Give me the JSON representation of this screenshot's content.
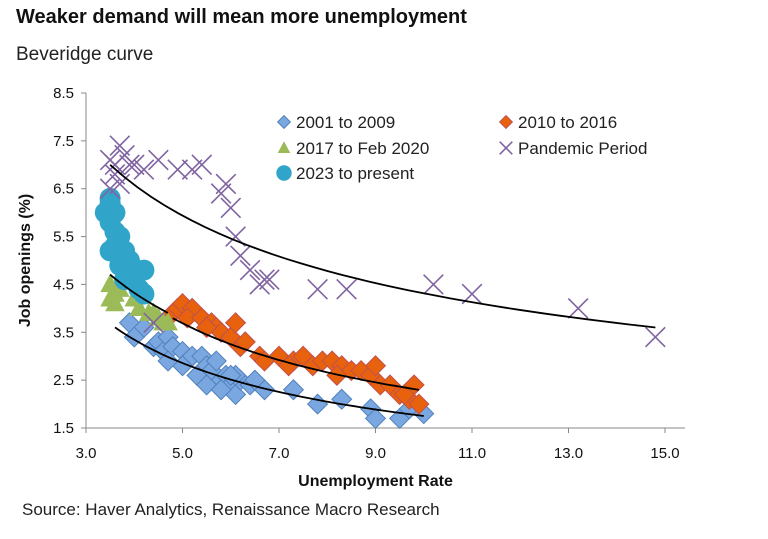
{
  "title": "Weaker demand will mean more unemployment",
  "subtitle": "Beveridge curve",
  "source": "Source: Haver Analytics, Renaissance Macro Research",
  "chart_data": {
    "type": "scatter",
    "xlabel": "Unemployment Rate",
    "ylabel": "Job openings (%)",
    "xlim": [
      3.0,
      15.0
    ],
    "ylim": [
      1.5,
      8.5
    ],
    "xticks": [
      "3.0",
      "5.0",
      "7.0",
      "9.0",
      "11.0",
      "13.0",
      "15.0"
    ],
    "yticks": [
      "1.5",
      "2.5",
      "3.5",
      "4.5",
      "5.5",
      "6.5",
      "7.5",
      "8.5"
    ],
    "grid": false,
    "legend_position": "top",
    "series": [
      {
        "name": "2001 to 2009",
        "marker": "diamond",
        "color": "#7ba7e0",
        "stroke": "#4f81bd",
        "points": [
          [
            3.9,
            3.7
          ],
          [
            4.2,
            3.6
          ],
          [
            4.0,
            3.4
          ],
          [
            4.4,
            3.2
          ],
          [
            4.5,
            3.3
          ],
          [
            4.6,
            3.1
          ],
          [
            4.7,
            3.4
          ],
          [
            4.8,
            3.2
          ],
          [
            5.0,
            3.1
          ],
          [
            5.1,
            2.9
          ],
          [
            5.2,
            3.0
          ],
          [
            5.4,
            3.0
          ],
          [
            5.5,
            2.8
          ],
          [
            5.6,
            2.7
          ],
          [
            5.7,
            2.9
          ],
          [
            5.8,
            2.5
          ],
          [
            5.9,
            2.6
          ],
          [
            6.0,
            2.4
          ],
          [
            6.1,
            2.2
          ],
          [
            6.2,
            2.5
          ],
          [
            6.1,
            2.6
          ],
          [
            6.4,
            2.4
          ],
          [
            6.7,
            2.3
          ],
          [
            7.3,
            2.3
          ],
          [
            7.8,
            2.0
          ],
          [
            8.3,
            2.1
          ],
          [
            8.9,
            1.9
          ],
          [
            9.0,
            1.7
          ],
          [
            9.5,
            1.7
          ],
          [
            9.7,
            1.9
          ],
          [
            10.0,
            1.8
          ],
          [
            5.3,
            2.6
          ],
          [
            5.5,
            2.4
          ],
          [
            5.0,
            2.8
          ],
          [
            4.7,
            2.9
          ],
          [
            6.5,
            2.5
          ],
          [
            6.0,
            2.6
          ],
          [
            5.8,
            2.3
          ]
        ],
        "trend": {
          "type": "power",
          "a": 8.9,
          "b": -0.706,
          "x_range": [
            3.6,
            10.0
          ]
        }
      },
      {
        "name": "2010 to 2016",
        "marker": "diamond",
        "color": "#e8620e",
        "stroke": "#c0504d",
        "points": [
          [
            4.8,
            3.9
          ],
          [
            4.9,
            4.0
          ],
          [
            5.0,
            4.1
          ],
          [
            5.2,
            4.0
          ],
          [
            5.1,
            3.8
          ],
          [
            5.4,
            3.8
          ],
          [
            5.6,
            3.7
          ],
          [
            5.7,
            3.6
          ],
          [
            5.8,
            3.5
          ],
          [
            6.0,
            3.4
          ],
          [
            6.1,
            3.7
          ],
          [
            6.2,
            3.2
          ],
          [
            6.6,
            3.0
          ],
          [
            6.7,
            2.9
          ],
          [
            7.0,
            3.0
          ],
          [
            7.3,
            2.9
          ],
          [
            7.5,
            3.0
          ],
          [
            7.7,
            2.8
          ],
          [
            7.9,
            2.9
          ],
          [
            8.1,
            2.9
          ],
          [
            8.3,
            2.8
          ],
          [
            8.5,
            2.7
          ],
          [
            8.7,
            2.7
          ],
          [
            8.9,
            2.6
          ],
          [
            9.0,
            2.8
          ],
          [
            9.1,
            2.4
          ],
          [
            9.3,
            2.4
          ],
          [
            9.5,
            2.2
          ],
          [
            9.7,
            2.1
          ],
          [
            9.8,
            2.4
          ],
          [
            9.9,
            2.0
          ],
          [
            9.6,
            2.2
          ],
          [
            5.5,
            3.6
          ],
          [
            6.3,
            3.3
          ],
          [
            7.2,
            2.8
          ],
          [
            8.2,
            2.6
          ]
        ],
        "trend": {
          "type": "power",
          "a": 11.25,
          "b": -0.693,
          "x_range": [
            4.8,
            9.9
          ]
        }
      },
      {
        "name": "2017 to Feb 2020",
        "marker": "triangle",
        "color": "#9bbb59",
        "stroke": "#9bbb59",
        "points": [
          [
            3.5,
            4.5
          ],
          [
            3.6,
            4.3
          ],
          [
            3.7,
            4.4
          ],
          [
            3.8,
            4.6
          ],
          [
            3.9,
            4.7
          ],
          [
            3.6,
            4.1
          ],
          [
            4.0,
            4.2
          ],
          [
            4.1,
            4.0
          ],
          [
            4.3,
            3.9
          ],
          [
            4.5,
            3.8
          ],
          [
            4.6,
            3.7
          ],
          [
            4.7,
            3.7
          ],
          [
            4.4,
            3.9
          ],
          [
            3.5,
            4.2
          ]
        ],
        "trend": {
          "type": "power",
          "a": 10.4,
          "b": -0.633,
          "x_range": [
            3.5,
            4.7
          ]
        }
      },
      {
        "name": "Pandemic Period",
        "marker": "x",
        "color": "#8064a2",
        "stroke": "#8064a2",
        "points": [
          [
            3.5,
            7.1
          ],
          [
            3.6,
            6.8
          ],
          [
            3.7,
            7.4
          ],
          [
            3.8,
            7.2
          ],
          [
            3.6,
            7.0
          ],
          [
            3.9,
            7.0
          ],
          [
            4.2,
            6.9
          ],
          [
            4.5,
            7.1
          ],
          [
            4.0,
            7.0
          ],
          [
            4.9,
            6.9
          ],
          [
            5.4,
            7.0
          ],
          [
            5.2,
            6.9
          ],
          [
            5.9,
            6.6
          ],
          [
            5.8,
            6.4
          ],
          [
            6.0,
            6.1
          ],
          [
            6.1,
            5.5
          ],
          [
            6.2,
            5.1
          ],
          [
            6.4,
            4.8
          ],
          [
            6.7,
            4.6
          ],
          [
            6.8,
            4.6
          ],
          [
            6.6,
            4.5
          ],
          [
            7.8,
            4.4
          ],
          [
            8.4,
            4.4
          ],
          [
            10.2,
            4.5
          ],
          [
            11.0,
            4.3
          ],
          [
            13.2,
            4.0
          ],
          [
            14.8,
            3.4
          ],
          [
            3.5,
            6.5
          ],
          [
            4.4,
            3.7
          ],
          [
            3.7,
            6.6
          ]
        ],
        "trend": {
          "type": "power",
          "a": 12.47,
          "b": -0.461,
          "x_range": [
            3.5,
            14.8
          ]
        }
      },
      {
        "name": "2023 to present",
        "marker": "circle",
        "color": "#31a5c9",
        "stroke": "#31a5c9",
        "points": [
          [
            3.4,
            6.0
          ],
          [
            3.5,
            6.3
          ],
          [
            3.5,
            5.8
          ],
          [
            3.6,
            6.0
          ],
          [
            3.6,
            5.6
          ],
          [
            3.5,
            5.2
          ],
          [
            3.7,
            5.5
          ],
          [
            3.8,
            5.2
          ],
          [
            3.9,
            5.0
          ],
          [
            3.7,
            4.9
          ],
          [
            3.9,
            4.8
          ],
          [
            4.0,
            4.6
          ],
          [
            4.1,
            4.4
          ],
          [
            4.2,
            4.8
          ],
          [
            4.2,
            4.3
          ],
          [
            3.8,
            4.6
          ],
          [
            3.5,
            6.2
          ],
          [
            3.6,
            5.3
          ]
        ]
      }
    ]
  }
}
